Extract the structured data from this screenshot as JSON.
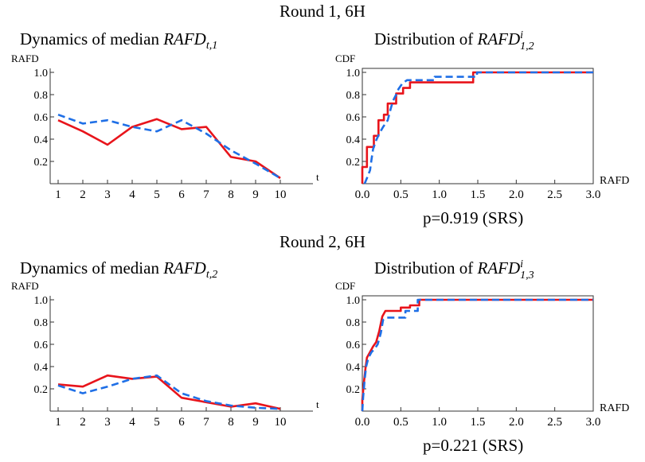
{
  "rounds": [
    {
      "title": "Round 1, 6H",
      "left": {
        "prefix": "Dynamics of median ",
        "math": "RAFD",
        "sub": "t,1"
      },
      "right": {
        "prefix": "Distribution of ",
        "math": "RAFD",
        "sup": "i",
        "sub": "1,2"
      },
      "pvalue": "p=0.919 (SRS)"
    },
    {
      "title": "Round 2, 6H",
      "left": {
        "prefix": "Dynamics of median ",
        "math": "RAFD",
        "sub": "t,2"
      },
      "right": {
        "prefix": "Distribution of ",
        "math": "RAFD",
        "sup": "i",
        "sub": "1,3"
      },
      "pvalue": "p=0.221 (SRS)"
    }
  ],
  "colors": {
    "red": "#e8141b",
    "blue": "#1f6fe6"
  },
  "chart_data": [
    {
      "type": "line",
      "ylabel": "RAFD",
      "xlabel": "t",
      "x": [
        1,
        2,
        3,
        4,
        5,
        6,
        7,
        8,
        9,
        10
      ],
      "xticks": [
        "1",
        "2",
        "3",
        "4",
        "5",
        "6",
        "7",
        "8",
        "9",
        "10"
      ],
      "yticks": [
        "0.2",
        "0.4",
        "0.6",
        "0.8",
        "1.0"
      ],
      "xlim": [
        0,
        10
      ],
      "ylim": [
        0,
        1.0
      ],
      "series": [
        {
          "color": "red",
          "style": "solid",
          "values": [
            0.57,
            0.47,
            0.35,
            0.51,
            0.58,
            0.49,
            0.51,
            0.24,
            0.2,
            0.05
          ]
        },
        {
          "color": "blue",
          "style": "dashed",
          "values": [
            0.62,
            0.54,
            0.57,
            0.51,
            0.47,
            0.57,
            0.45,
            0.3,
            0.18,
            0.05
          ]
        }
      ]
    },
    {
      "type": "line",
      "ylabel": "CDF",
      "xlabel": "RAFD",
      "xticks": [
        "0.0",
        "0.5",
        "1.0",
        "1.5",
        "2.0",
        "2.5",
        "3.0"
      ],
      "yticks": [
        "0.2",
        "0.4",
        "0.6",
        "0.8",
        "1.0"
      ],
      "xlim": [
        0,
        3.0
      ],
      "ylim": [
        0,
        1.0
      ],
      "series": [
        {
          "color": "red",
          "style": "solid",
          "points": [
            [
              0,
              0
            ],
            [
              0,
              0.15
            ],
            [
              0.06,
              0.15
            ],
            [
              0.06,
              0.33
            ],
            [
              0.15,
              0.33
            ],
            [
              0.15,
              0.43
            ],
            [
              0.21,
              0.43
            ],
            [
              0.21,
              0.57
            ],
            [
              0.28,
              0.57
            ],
            [
              0.28,
              0.62
            ],
            [
              0.33,
              0.62
            ],
            [
              0.33,
              0.72
            ],
            [
              0.44,
              0.72
            ],
            [
              0.44,
              0.81
            ],
            [
              0.53,
              0.81
            ],
            [
              0.53,
              0.86
            ],
            [
              0.62,
              0.86
            ],
            [
              0.62,
              0.91
            ],
            [
              1.44,
              0.91
            ],
            [
              1.44,
              1.0
            ],
            [
              3.0,
              1.0
            ]
          ]
        },
        {
          "color": "blue",
          "style": "dashed",
          "points": [
            [
              0.03,
              0
            ],
            [
              0.06,
              0.05
            ],
            [
              0.1,
              0.12
            ],
            [
              0.12,
              0.22
            ],
            [
              0.14,
              0.31
            ],
            [
              0.18,
              0.39
            ],
            [
              0.22,
              0.45
            ],
            [
              0.27,
              0.51
            ],
            [
              0.33,
              0.57
            ],
            [
              0.36,
              0.65
            ],
            [
              0.38,
              0.7
            ],
            [
              0.41,
              0.76
            ],
            [
              0.44,
              0.8
            ],
            [
              0.47,
              0.85
            ],
            [
              0.52,
              0.9
            ],
            [
              0.58,
              0.93
            ],
            [
              0.94,
              0.93
            ],
            [
              0.94,
              0.96
            ],
            [
              1.49,
              0.96
            ],
            [
              1.49,
              1.0
            ],
            [
              3.0,
              1.0
            ]
          ]
        }
      ]
    },
    {
      "type": "line",
      "ylabel": "RAFD",
      "xlabel": "t",
      "x": [
        1,
        2,
        3,
        4,
        5,
        6,
        7,
        8,
        9,
        10
      ],
      "xticks": [
        "1",
        "2",
        "3",
        "4",
        "5",
        "6",
        "7",
        "8",
        "9",
        "10"
      ],
      "yticks": [
        "0.2",
        "0.4",
        "0.6",
        "0.8",
        "1.0"
      ],
      "xlim": [
        0,
        10
      ],
      "ylim": [
        0,
        1.0
      ],
      "series": [
        {
          "color": "red",
          "style": "solid",
          "values": [
            0.24,
            0.22,
            0.32,
            0.29,
            0.31,
            0.12,
            0.08,
            0.04,
            0.07,
            0.02
          ]
        },
        {
          "color": "blue",
          "style": "dashed",
          "values": [
            0.23,
            0.16,
            0.22,
            0.29,
            0.32,
            0.16,
            0.09,
            0.05,
            0.03,
            0.02
          ]
        }
      ]
    },
    {
      "type": "line",
      "ylabel": "CDF",
      "xlabel": "RAFD",
      "xticks": [
        "0.0",
        "0.5",
        "1.0",
        "1.5",
        "2.0",
        "2.5",
        "3.0"
      ],
      "yticks": [
        "0.2",
        "0.4",
        "0.6",
        "0.8",
        "1.0"
      ],
      "xlim": [
        0,
        3.0
      ],
      "ylim": [
        0,
        1.0
      ],
      "series": [
        {
          "color": "red",
          "style": "solid",
          "points": [
            [
              0,
              0
            ],
            [
              0,
              0.1
            ],
            [
              0.02,
              0.25
            ],
            [
              0.04,
              0.38
            ],
            [
              0.06,
              0.48
            ],
            [
              0.1,
              0.53
            ],
            [
              0.14,
              0.58
            ],
            [
              0.18,
              0.62
            ],
            [
              0.22,
              0.72
            ],
            [
              0.26,
              0.85
            ],
            [
              0.3,
              0.9
            ],
            [
              0.5,
              0.9
            ],
            [
              0.5,
              0.93
            ],
            [
              0.62,
              0.93
            ],
            [
              0.62,
              0.95
            ],
            [
              0.74,
              0.95
            ],
            [
              0.74,
              1.0
            ],
            [
              3.0,
              1.0
            ]
          ]
        },
        {
          "color": "blue",
          "style": "dashed",
          "points": [
            [
              0,
              0
            ],
            [
              0.01,
              0.12
            ],
            [
              0.03,
              0.28
            ],
            [
              0.05,
              0.4
            ],
            [
              0.08,
              0.48
            ],
            [
              0.12,
              0.53
            ],
            [
              0.16,
              0.56
            ],
            [
              0.2,
              0.6
            ],
            [
              0.24,
              0.7
            ],
            [
              0.27,
              0.82
            ],
            [
              0.31,
              0.84
            ],
            [
              0.56,
              0.84
            ],
            [
              0.56,
              0.9
            ],
            [
              0.72,
              0.9
            ],
            [
              0.72,
              1.0
            ],
            [
              3.0,
              1.0
            ]
          ]
        }
      ]
    }
  ]
}
